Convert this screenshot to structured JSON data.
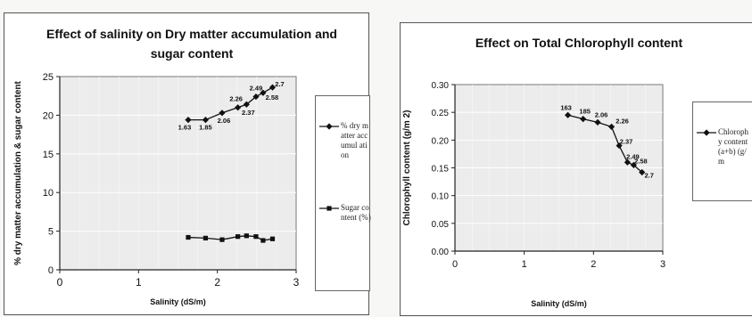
{
  "chart_data": [
    {
      "type": "line",
      "title": "Effect of salinity on Dry matter accumulation and sugar content",
      "xlabel": "Salinity (dS/m)",
      "ylabel": "% dry matter accumulation & sugar content",
      "xlim": [
        0,
        3
      ],
      "ylim": [
        0,
        25
      ],
      "xticks": [
        0,
        1,
        2,
        3
      ],
      "yticks": [
        0,
        5,
        10,
        15,
        20,
        25
      ],
      "grid": true,
      "legend_position": "right",
      "series": [
        {
          "name": "% dry matter accumulation",
          "marker": "diamond",
          "color": "#111111",
          "points": [
            {
              "x": 1.63,
              "y": 19.4,
              "label": "1.63"
            },
            {
              "x": 1.85,
              "y": 19.4,
              "label": "1.85"
            },
            {
              "x": 2.06,
              "y": 20.3,
              "label": "2.06"
            },
            {
              "x": 2.26,
              "y": 21.0,
              "label": "2.26"
            },
            {
              "x": 2.37,
              "y": 21.4,
              "label": "2.37"
            },
            {
              "x": 2.49,
              "y": 22.4,
              "label": "2.49"
            },
            {
              "x": 2.58,
              "y": 22.9,
              "label": "2.58"
            },
            {
              "x": 2.7,
              "y": 23.6,
              "label": "2.7"
            }
          ]
        },
        {
          "name": "Sugar content (%)",
          "marker": "square",
          "color": "#111111",
          "points": [
            {
              "x": 1.63,
              "y": 4.2
            },
            {
              "x": 1.85,
              "y": 4.1
            },
            {
              "x": 2.06,
              "y": 3.9
            },
            {
              "x": 2.26,
              "y": 4.3
            },
            {
              "x": 2.37,
              "y": 4.4
            },
            {
              "x": 2.49,
              "y": 4.3
            },
            {
              "x": 2.58,
              "y": 3.8
            },
            {
              "x": 2.7,
              "y": 4.0
            }
          ]
        }
      ],
      "legend": [
        {
          "marker": "diamond",
          "text": "% dry matter accumul ation"
        },
        {
          "marker": "square",
          "text": "Sugar content (%)"
        }
      ]
    },
    {
      "type": "line",
      "title": "Effect on Total Chlorophyll content",
      "xlabel": "Salinity (dS/m)",
      "ylabel": "Chlorophyll content (g/m 2)",
      "xlim": [
        0,
        3
      ],
      "ylim": [
        0,
        0.3
      ],
      "xticks": [
        0,
        1,
        2,
        3
      ],
      "yticks": [
        0,
        0.05,
        0.1,
        0.15,
        0.2,
        0.25,
        0.3
      ],
      "grid": true,
      "legend_position": "right",
      "series": [
        {
          "name": "Chlorophyll content (a+b) (g/m",
          "marker": "diamond",
          "color": "#111111",
          "points": [
            {
              "x": 1.63,
              "y": 0.245,
              "label": "163"
            },
            {
              "x": 1.85,
              "y": 0.238,
              "label": "185"
            },
            {
              "x": 2.06,
              "y": 0.232,
              "label": "2.06"
            },
            {
              "x": 2.26,
              "y": 0.224,
              "label": "2.26"
            },
            {
              "x": 2.37,
              "y": 0.19,
              "label": "2.37"
            },
            {
              "x": 2.49,
              "y": 0.16,
              "label": "2.49"
            },
            {
              "x": 2.58,
              "y": 0.155,
              "label": "2.58"
            },
            {
              "x": 2.7,
              "y": 0.142,
              "label": "2.7"
            }
          ]
        }
      ],
      "legend": [
        {
          "marker": "diamond",
          "text": "Chlorophy content (a+b) (g/m"
        }
      ]
    }
  ]
}
